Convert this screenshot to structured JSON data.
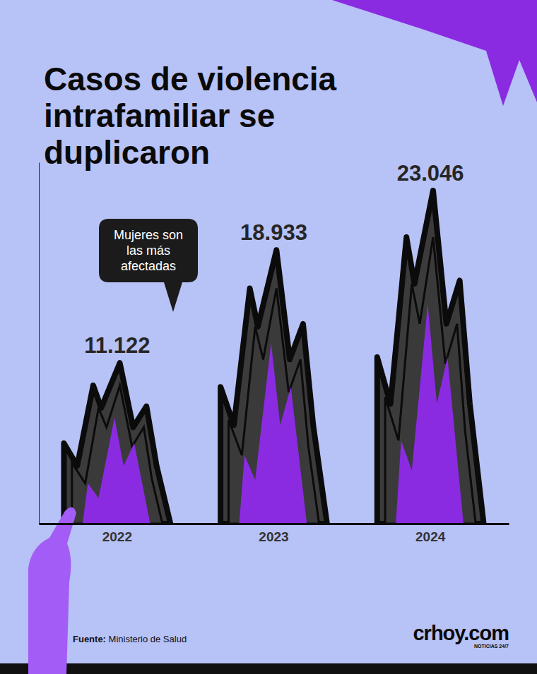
{
  "chart_data": {
    "type": "bar",
    "title": "Casos de violencia intrafamiliar se duplicaron",
    "categories": [
      "2022",
      "2023",
      "2024"
    ],
    "values": [
      11122,
      18933,
      23046
    ],
    "value_labels": [
      "11.122",
      "18.933",
      "23.046"
    ],
    "data_labels": true,
    "color": "#8a2be2",
    "ylim": [
      0,
      25000
    ],
    "tick_labels": "x",
    "annotation": "Mujeres son las más afectadas",
    "source": "Fuente: Ministerio de Salud",
    "logo": "crhoy.com",
    "logo_tagline": "NOTICIAS 24/7"
  }
}
